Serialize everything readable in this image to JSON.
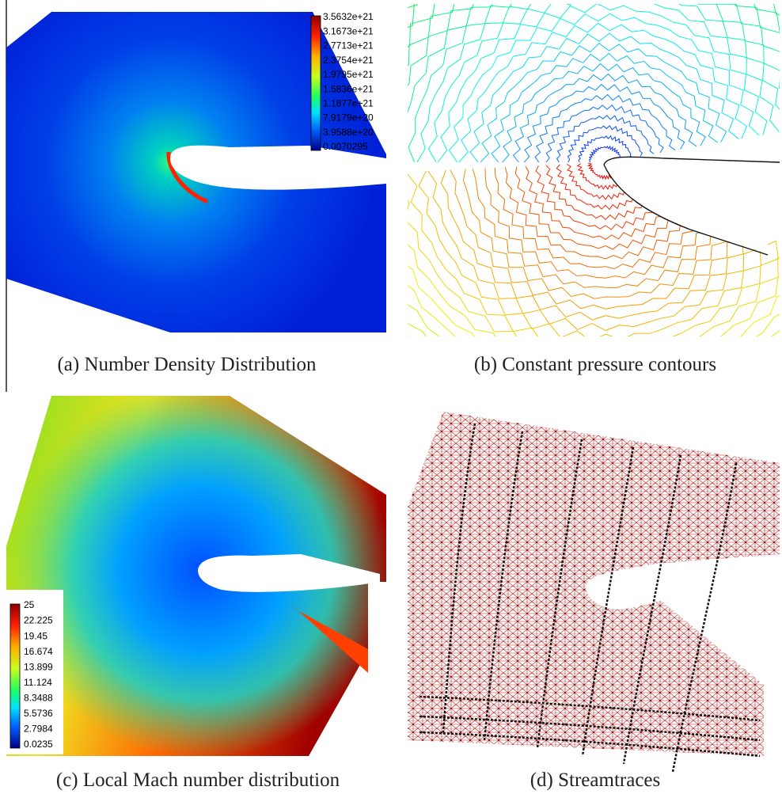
{
  "panels": [
    {
      "caption": "(a) Number Density Distribution",
      "colorbar": [
        "3.5632e+21",
        "3.1673e+21",
        "2.7713e+21",
        "2.3754e+21",
        "1.9795e+21",
        "1.5836e+21",
        "1.1877e+21",
        "7.9179e+20",
        "3.9588e+20",
        "0.0070295"
      ]
    },
    {
      "caption": "(b) Constant pressure contours"
    },
    {
      "caption": "(c) Local Mach number distribution",
      "colorbar": [
        "25",
        "22.225",
        "19.45",
        "16.674",
        "13.899",
        "11.124",
        "8.3488",
        "5.5736",
        "2.7984",
        "0.0235"
      ]
    },
    {
      "caption": "(d) Streamtraces"
    }
  ]
}
